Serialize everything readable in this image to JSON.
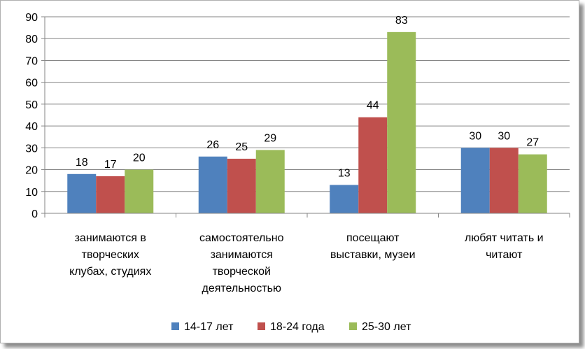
{
  "chart_data": {
    "type": "bar",
    "categories": [
      [
        "занимаются в",
        "творческих",
        "клубах, студиях"
      ],
      [
        "самостоятельно",
        "занимаются",
        "творческой",
        "деятельностью"
      ],
      [
        "посещают",
        "выставки, музеи"
      ],
      [
        "любят читать и",
        "читают"
      ]
    ],
    "series": [
      {
        "name": "14-17 лет",
        "color": "#4f81bd",
        "values": [
          18,
          26,
          13,
          30
        ]
      },
      {
        "name": "18-24 года",
        "color": "#c0504d",
        "values": [
          17,
          25,
          44,
          30
        ]
      },
      {
        "name": "25-30 лет",
        "color": "#9bbb59",
        "values": [
          20,
          29,
          83,
          27
        ]
      }
    ],
    "ylim": [
      0,
      90
    ],
    "yticks": [
      0,
      10,
      20,
      30,
      40,
      50,
      60,
      70,
      80,
      90
    ],
    "grid": true,
    "legend": "bottom"
  }
}
